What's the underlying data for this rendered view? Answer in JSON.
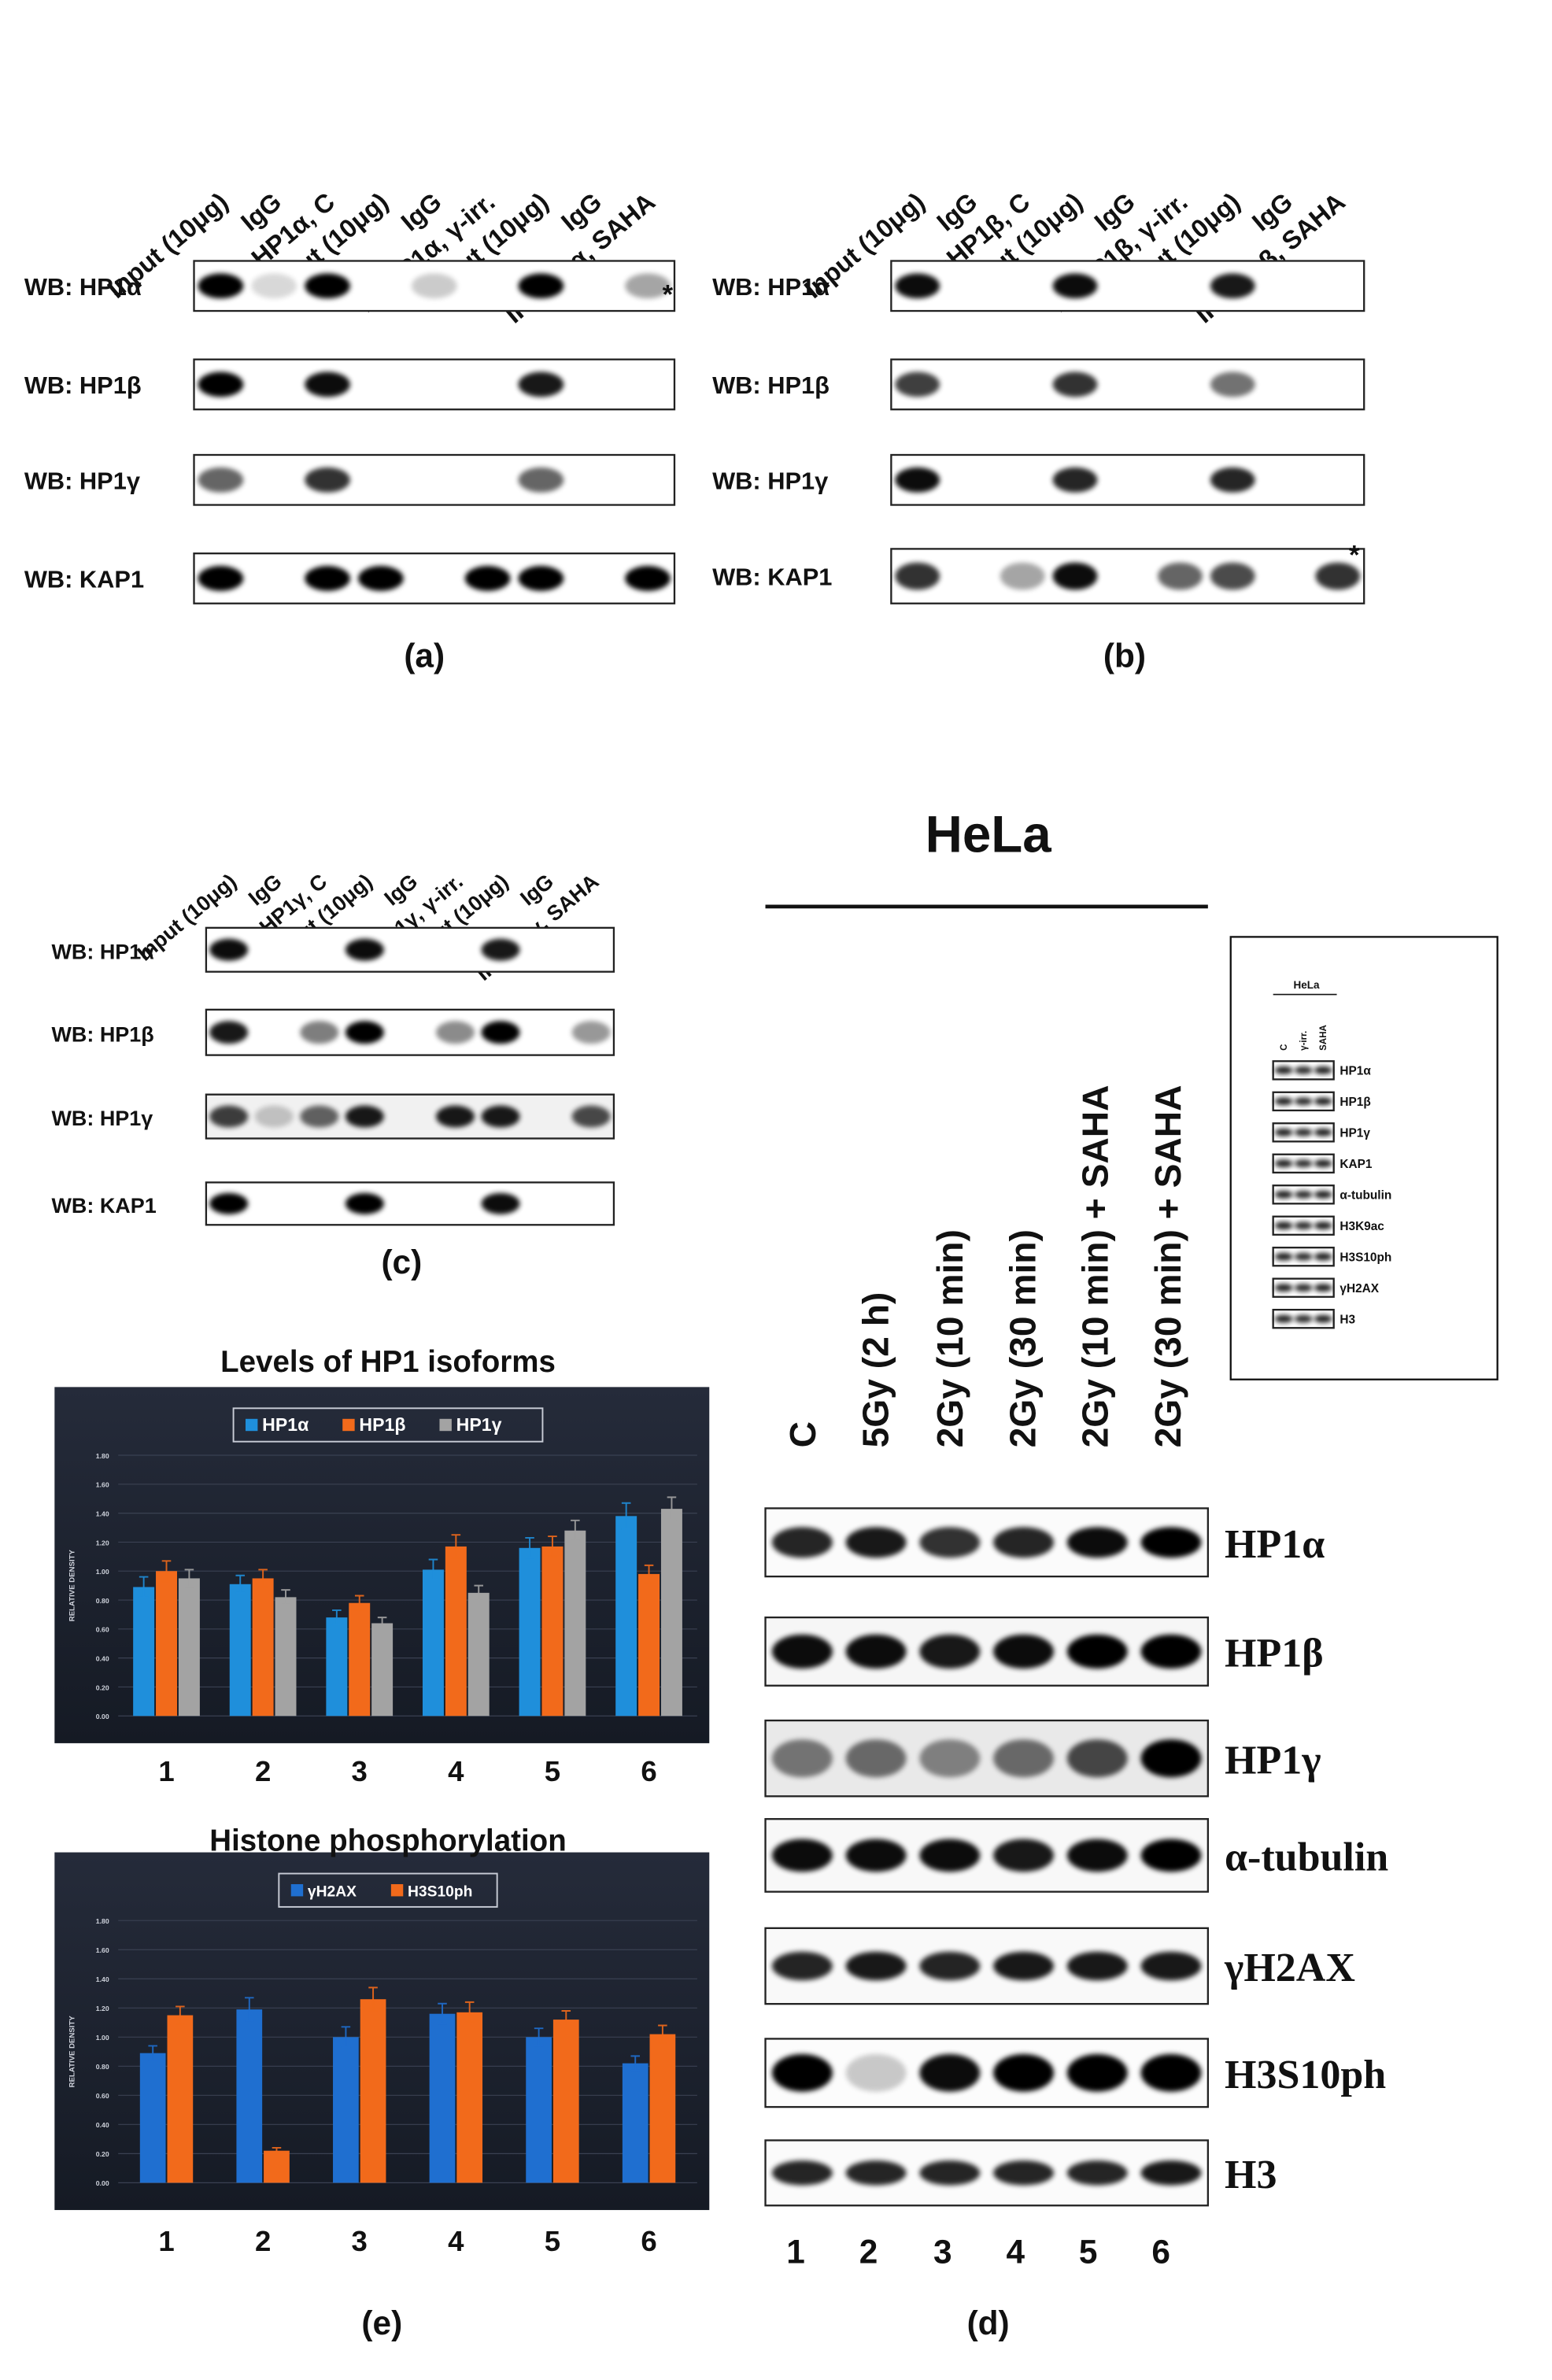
{
  "panel_a": {
    "label": "(a)",
    "lanes": [
      "Input (10μg)",
      "IgG",
      "IP:HP1α, C",
      "Input (10μg)",
      "IgG",
      "IP:HP1α, γ-irr.",
      "Input (10μg)",
      "IgG",
      "IP:HP1α, SAHA"
    ],
    "rows": [
      "WB: HP1α",
      "WB: HP1β",
      "WB: HP1γ",
      "WB: KAP1"
    ],
    "asterisk": "*"
  },
  "panel_b": {
    "label": "(b)",
    "lanes": [
      "Input (10μg)",
      "IgG",
      "IP:HP1β, C",
      "Input (10μg)",
      "IgG",
      "IP:HP1β, γ-irr.",
      "Input (10μg)",
      "IgG",
      "IP:HP1β, SAHA"
    ],
    "rows": [
      "WB: HP1α",
      "WB: HP1β",
      "WB: HP1γ",
      "WB: KAP1"
    ],
    "asterisk": "*"
  },
  "panel_c": {
    "label": "(c)",
    "lanes": [
      "Input (10μg)",
      "IgG",
      "IP:HP1γ, C",
      "Input (10μg)",
      "IgG",
      "IP:HP1γ, γ-irr.",
      "Input (10μg)",
      "IgG",
      "IP:HP1γ, SAHA"
    ],
    "rows": [
      "WB: HP1α",
      "WB: HP1β",
      "WB: HP1γ",
      "WB: KAP1"
    ]
  },
  "panel_d": {
    "label": "(d)",
    "title": "HeLa",
    "conditions": [
      "C",
      "5Gy (2 h)",
      "2Gy (10 min)",
      "2Gy (30 min)",
      "2Gy (10 min) + SAHA",
      "2Gy (30 min) + SAHA"
    ],
    "rows": [
      "HP1α",
      "HP1β",
      "HP1γ",
      "α-tubulin",
      "γH2AX",
      "H3S10ph",
      "H3"
    ],
    "lane_numbers": [
      "1",
      "2",
      "3",
      "4",
      "5",
      "6"
    ],
    "inset": {
      "title": "HeLa",
      "lanes": [
        "C",
        "γ-irr.",
        "SAHA"
      ],
      "rows": [
        "HP1α",
        "HP1β",
        "HP1γ",
        "KAP1",
        "α-tubulin",
        "H3K9ac",
        "H3S10ph",
        "γH2AX",
        "H3"
      ]
    }
  },
  "panel_e": {
    "label": "(e)",
    "chart_data": [
      {
        "type": "bar",
        "title": "Levels of HP1 isoforms",
        "y_label": "RELATIVE DENSITY",
        "categories": [
          "1",
          "2",
          "3",
          "4",
          "5",
          "6"
        ],
        "series": [
          {
            "name": "HP1α",
            "color": "#1f8fdb",
            "values": [
              0.89,
              0.91,
              0.68,
              1.01,
              1.16,
              1.38
            ],
            "errors": [
              0.07,
              0.06,
              0.05,
              0.07,
              0.07,
              0.09
            ]
          },
          {
            "name": "HP1β",
            "color": "#f26a1b",
            "values": [
              1.0,
              0.95,
              0.78,
              1.17,
              1.17,
              0.98
            ],
            "errors": [
              0.07,
              0.06,
              0.05,
              0.08,
              0.07,
              0.06
            ]
          },
          {
            "name": "HP1γ",
            "color": "#a3a3a3",
            "values": [
              0.95,
              0.82,
              0.64,
              0.85,
              1.28,
              1.43
            ],
            "errors": [
              0.06,
              0.05,
              0.04,
              0.05,
              0.07,
              0.08
            ]
          }
        ],
        "ylim": [
          0,
          1.8
        ],
        "yticks": [
          {
            "value": 0,
            "label": "0.00"
          },
          {
            "value": 0.2,
            "label": "0.20"
          },
          {
            "value": 0.4,
            "label": "0.40"
          },
          {
            "value": 0.6,
            "label": "0.60"
          },
          {
            "value": 0.8,
            "label": "0.80"
          },
          {
            "value": 1,
            "label": "1.00"
          },
          {
            "value": 1.2,
            "label": "1.20"
          },
          {
            "value": 1.4,
            "label": "1.40"
          },
          {
            "value": 1.6,
            "label": "1.60"
          },
          {
            "value": 1.8,
            "label": "1.80"
          }
        ],
        "grid": true
      },
      {
        "type": "bar",
        "title": "Histone phosphorylation",
        "y_label": "RELATIVE DENSITY",
        "categories": [
          "1",
          "2",
          "3",
          "4",
          "5",
          "6"
        ],
        "series": [
          {
            "name": "γH2AX",
            "color": "#1f6fd0",
            "values": [
              0.89,
              1.19,
              1.0,
              1.16,
              1.0,
              0.82
            ],
            "errors": [
              0.05,
              0.08,
              0.07,
              0.07,
              0.06,
              0.05
            ]
          },
          {
            "name": "H3S10ph",
            "color": "#f26a1b",
            "values": [
              1.15,
              0.22,
              1.26,
              1.17,
              1.12,
              1.02
            ],
            "errors": [
              0.06,
              0.02,
              0.08,
              0.07,
              0.06,
              0.06
            ]
          }
        ],
        "ylim": [
          0,
          1.8
        ],
        "yticks": [
          {
            "value": 0,
            "label": "0.00"
          },
          {
            "value": 0.2,
            "label": "0.20"
          },
          {
            "value": 0.4,
            "label": "0.40"
          },
          {
            "value": 0.6,
            "label": "0.60"
          },
          {
            "value": 0.8,
            "label": "0.80"
          },
          {
            "value": 1,
            "label": "1.00"
          },
          {
            "value": 1.2,
            "label": "1.20"
          },
          {
            "value": 1.4,
            "label": "1.40"
          },
          {
            "value": 1.6,
            "label": "1.60"
          },
          {
            "value": 1.8,
            "label": "1.80"
          }
        ],
        "grid": true
      }
    ]
  }
}
